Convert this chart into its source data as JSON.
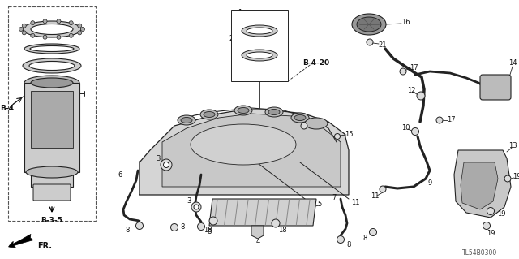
{
  "bg_color": "#ffffff",
  "fig_width": 6.4,
  "fig_height": 3.19,
  "dpi": 100,
  "line_color": "#222222",
  "dashed_box_color": "#555555",
  "diagram_code": "TL54B0300",
  "fr_label": "FR.",
  "b4_label": "B-4",
  "b35_label": "B-3-5",
  "b420_label": "B-4-20"
}
